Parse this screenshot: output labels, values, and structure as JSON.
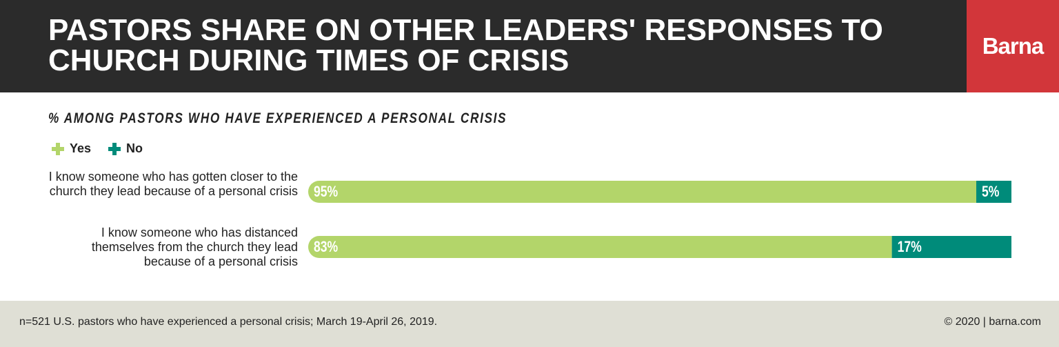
{
  "chart_data": {
    "type": "stacked-bar-horizontal",
    "title": "PASTORS SHARE ON OTHER LEADERS' RESPONSES TO CHURCH DURING TIMES OF CRISIS",
    "brand": "Barna",
    "subtitle": "% AMONG PASTORS WHO HAVE EXPERIENCED A PERSONAL CRISIS",
    "categories": [
      "I know someone who has gotten closer to the church they lead because of a personal crisis",
      "I know someone who has distanced themselves from the church they lead because of a personal crisis"
    ],
    "series": [
      {
        "name": "Yes",
        "color": "#b3d56a",
        "values": [
          95,
          83
        ],
        "value_labels": [
          "95%",
          "83%"
        ]
      },
      {
        "name": "No",
        "color": "#008b7a",
        "values": [
          5,
          17
        ],
        "value_labels": [
          "5%",
          "17%"
        ]
      }
    ],
    "xlim": [
      0,
      100
    ],
    "footnote": "n=521 U.S. pastors who have experienced a personal crisis; March 19-April 26, 2019.",
    "copyright": "© 2020 | barna.com"
  }
}
